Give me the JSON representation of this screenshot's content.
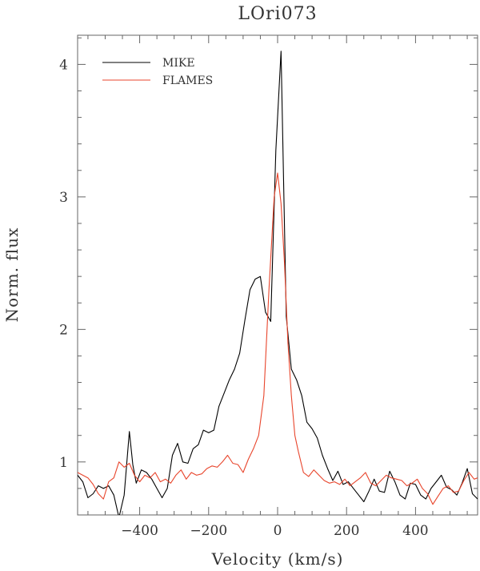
{
  "chart_data": {
    "type": "line",
    "title": "LOri073",
    "xlabel": "Velocity (km/s)",
    "ylabel": "Norm. flux",
    "xlim": [
      -580,
      580
    ],
    "ylim": [
      0.6,
      4.22
    ],
    "xticks": [
      -400,
      -200,
      0,
      200,
      400
    ],
    "xtick_labels": [
      "−400",
      "−200",
      "0",
      "200",
      "400"
    ],
    "yticks": [
      1,
      2,
      3,
      4
    ],
    "ytick_labels": [
      "1",
      "2",
      "3",
      "4"
    ],
    "legend_position": "top-left",
    "series": [
      {
        "name": "MIKE",
        "color": "#000000",
        "x": [
          -580,
          -565,
          -550,
          -535,
          -520,
          -505,
          -490,
          -475,
          -460,
          -445,
          -430,
          -420,
          -410,
          -395,
          -380,
          -365,
          -350,
          -335,
          -320,
          -305,
          -290,
          -275,
          -260,
          -245,
          -230,
          -215,
          -200,
          -185,
          -170,
          -155,
          -140,
          -125,
          -110,
          -95,
          -80,
          -65,
          -50,
          -35,
          -20,
          -5,
          10,
          25,
          40,
          55,
          70,
          85,
          100,
          115,
          130,
          145,
          160,
          175,
          190,
          205,
          220,
          235,
          250,
          265,
          280,
          295,
          310,
          325,
          340,
          355,
          370,
          385,
          400,
          415,
          430,
          445,
          460,
          475,
          490,
          505,
          520,
          535,
          550,
          565,
          580
        ],
        "values": [
          0.9,
          0.85,
          0.73,
          0.76,
          0.82,
          0.8,
          0.82,
          0.75,
          0.58,
          0.75,
          1.23,
          0.98,
          0.84,
          0.94,
          0.92,
          0.87,
          0.8,
          0.73,
          0.8,
          1.05,
          1.14,
          1.0,
          0.99,
          1.1,
          1.13,
          1.24,
          1.22,
          1.24,
          1.42,
          1.52,
          1.62,
          1.7,
          1.82,
          2.07,
          2.3,
          2.38,
          2.4,
          2.13,
          2.06,
          3.35,
          4.1,
          2.1,
          1.7,
          1.62,
          1.5,
          1.3,
          1.25,
          1.18,
          1.05,
          0.95,
          0.86,
          0.93,
          0.83,
          0.85,
          0.8,
          0.75,
          0.7,
          0.78,
          0.87,
          0.78,
          0.77,
          0.93,
          0.85,
          0.75,
          0.72,
          0.84,
          0.83,
          0.75,
          0.72,
          0.8,
          0.85,
          0.9,
          0.81,
          0.79,
          0.75,
          0.84,
          0.95,
          0.76,
          0.72
        ]
      },
      {
        "name": "FLAMES",
        "color": "#e8452c",
        "x": [
          -580,
          -565,
          -550,
          -535,
          -520,
          -505,
          -490,
          -475,
          -460,
          -445,
          -430,
          -415,
          -400,
          -385,
          -370,
          -355,
          -340,
          -325,
          -310,
          -295,
          -280,
          -265,
          -250,
          -235,
          -220,
          -205,
          -190,
          -175,
          -160,
          -145,
          -130,
          -115,
          -100,
          -85,
          -70,
          -55,
          -40,
          -25,
          -10,
          0,
          10,
          20,
          30,
          40,
          50,
          60,
          75,
          90,
          105,
          120,
          135,
          150,
          165,
          180,
          195,
          210,
          225,
          240,
          255,
          270,
          285,
          300,
          315,
          330,
          345,
          360,
          375,
          390,
          405,
          420,
          435,
          450,
          465,
          480,
          495,
          510,
          525,
          540,
          555,
          570,
          580
        ],
        "values": [
          0.92,
          0.9,
          0.88,
          0.83,
          0.76,
          0.72,
          0.85,
          0.88,
          1.0,
          0.96,
          0.99,
          0.9,
          0.85,
          0.9,
          0.88,
          0.92,
          0.85,
          0.87,
          0.84,
          0.9,
          0.94,
          0.87,
          0.92,
          0.9,
          0.91,
          0.95,
          0.97,
          0.96,
          1.0,
          1.05,
          0.99,
          0.98,
          0.92,
          1.02,
          1.1,
          1.2,
          1.5,
          2.3,
          3.0,
          3.18,
          2.95,
          2.5,
          1.9,
          1.5,
          1.2,
          1.08,
          0.92,
          0.89,
          0.94,
          0.9,
          0.86,
          0.84,
          0.85,
          0.83,
          0.87,
          0.82,
          0.85,
          0.88,
          0.92,
          0.84,
          0.82,
          0.86,
          0.9,
          0.88,
          0.87,
          0.86,
          0.82,
          0.84,
          0.87,
          0.8,
          0.76,
          0.68,
          0.74,
          0.8,
          0.82,
          0.77,
          0.78,
          0.86,
          0.92,
          0.87,
          0.88
        ]
      }
    ]
  }
}
